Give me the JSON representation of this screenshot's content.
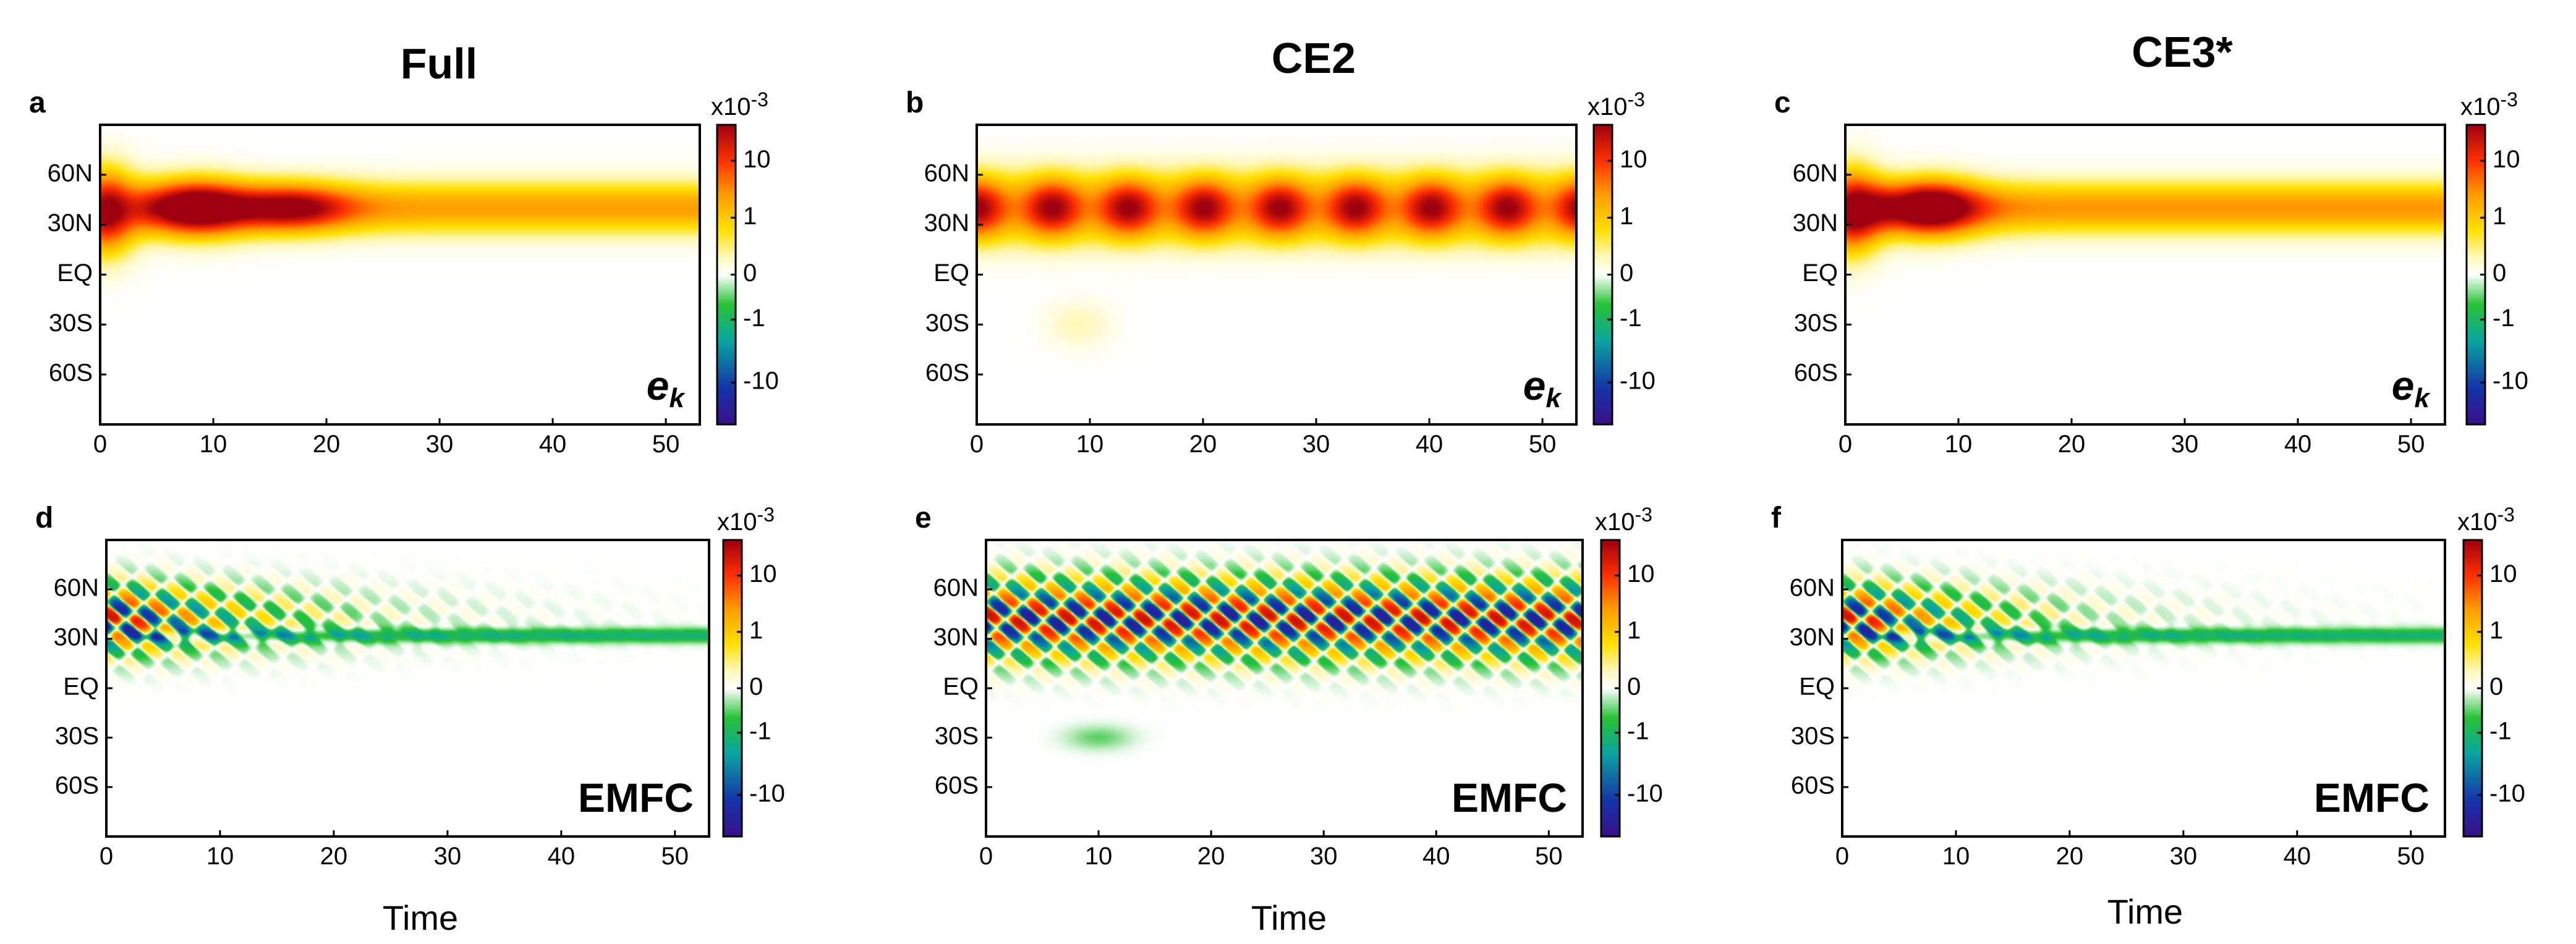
{
  "colors": {
    "colormap": [
      "#3b0f8a",
      "#1433a8",
      "#0aa6a0",
      "#27c234",
      "#ffffff",
      "#fff7b8",
      "#ffe000",
      "#ff9a00",
      "#ff3000",
      "#9e0010"
    ]
  },
  "figure": {
    "columns": [
      "Full",
      "CE2",
      "CE3*"
    ],
    "xlabel": "Time",
    "colorbar": {
      "exponent": "x10",
      "exponent_power": "-3",
      "ticks": [
        "10",
        "1",
        "0",
        "-1",
        "-10"
      ]
    }
  },
  "chart_data": [
    {
      "panel": "a",
      "type": "heatmap",
      "column": "Full",
      "variable": "e",
      "variable_sub": "k",
      "x_ticks": [
        "0",
        "10",
        "20",
        "30",
        "40",
        "50"
      ],
      "y_ticks": [
        "60N",
        "30N",
        "EQ",
        "30S",
        "60S"
      ],
      "xlim": [
        0,
        53
      ],
      "ylim": [
        -90,
        90
      ],
      "colorbar_ticks": [
        "10",
        "1",
        "0",
        "-1",
        "-10"
      ],
      "colorbar_exponent": "x10-3",
      "features": [
        {
          "kind": "blob",
          "t": 0.5,
          "lat": 38,
          "dt": 1.8,
          "dlat": 17,
          "amp": 1.0
        },
        {
          "kind": "blob",
          "t": 8.5,
          "lat": 40,
          "dt": 3.2,
          "dlat": 12,
          "amp": 0.8
        },
        {
          "kind": "blob",
          "t": 17,
          "lat": 40,
          "dt": 3.5,
          "dlat": 10,
          "amp": 0.58
        },
        {
          "kind": "band",
          "t0": 5,
          "t1": 53,
          "lat": 40,
          "dlat": 11,
          "amp": 0.52
        }
      ]
    },
    {
      "panel": "b",
      "type": "heatmap",
      "column": "CE2",
      "variable": "e",
      "variable_sub": "k",
      "x_ticks": [
        "0",
        "10",
        "20",
        "30",
        "40",
        "50"
      ],
      "y_ticks": [
        "60N",
        "30N",
        "EQ",
        "30S",
        "60S"
      ],
      "xlim": [
        0,
        53
      ],
      "ylim": [
        -90,
        90
      ],
      "colorbar_ticks": [
        "10",
        "1",
        "0",
        "-1",
        "-10"
      ],
      "colorbar_exponent": "x10-3",
      "features": [
        {
          "kind": "band",
          "t0": 0,
          "t1": 53,
          "lat": 40,
          "dlat": 14,
          "amp": 0.82
        },
        {
          "kind": "periodic",
          "t0": 0,
          "t1": 53,
          "period": 6.7,
          "lat": 40,
          "dlat": 12,
          "amp": 0.2
        },
        {
          "kind": "blob",
          "t": 9,
          "lat": -30,
          "dt": 2,
          "dlat": 10,
          "amp": 0.12
        }
      ]
    },
    {
      "panel": "c",
      "type": "heatmap",
      "column": "CE3*",
      "variable": "e",
      "variable_sub": "k",
      "x_ticks": [
        "0",
        "10",
        "20",
        "30",
        "40",
        "50"
      ],
      "y_ticks": [
        "60N",
        "30N",
        "EQ",
        "30S",
        "60S"
      ],
      "xlim": [
        0,
        53
      ],
      "ylim": [
        -90,
        90
      ],
      "colorbar_ticks": [
        "10",
        "1",
        "0",
        "-1",
        "-10"
      ],
      "colorbar_exponent": "x10-3",
      "features": [
        {
          "kind": "blob",
          "t": 0.5,
          "lat": 38,
          "dt": 1.8,
          "dlat": 17,
          "amp": 1.0
        },
        {
          "kind": "blob",
          "t": 7.5,
          "lat": 40,
          "dt": 3,
          "dlat": 12,
          "amp": 0.8
        },
        {
          "kind": "band",
          "t0": 4,
          "t1": 53,
          "lat": 40,
          "dlat": 11,
          "amp": 0.55
        }
      ]
    },
    {
      "panel": "d",
      "type": "heatmap",
      "column": "Full",
      "variable": "EMFC",
      "variable_sub": "",
      "x_ticks": [
        "0",
        "10",
        "20",
        "30",
        "40",
        "50"
      ],
      "y_ticks": [
        "60N",
        "30N",
        "EQ",
        "30S",
        "60S"
      ],
      "xlim": [
        0,
        53
      ],
      "ylim": [
        -90,
        90
      ],
      "colorbar_ticks": [
        "10",
        "1",
        "0",
        "-1",
        "-10"
      ],
      "colorbar_exponent": "x10-3",
      "features": [
        {
          "kind": "dipole",
          "t0": 0,
          "t1": 22,
          "lat": 42,
          "dlat": 14,
          "amp": 0.9,
          "decay": 11
        },
        {
          "kind": "band",
          "t0": 5,
          "t1": 53,
          "lat": 32,
          "dlat": 3,
          "amp": -0.35
        }
      ]
    },
    {
      "panel": "e",
      "type": "heatmap",
      "column": "CE2",
      "variable": "EMFC",
      "variable_sub": "",
      "x_ticks": [
        "0",
        "10",
        "20",
        "30",
        "40",
        "50"
      ],
      "y_ticks": [
        "60N",
        "30N",
        "EQ",
        "30S",
        "60S"
      ],
      "xlim": [
        0,
        53
      ],
      "ylim": [
        -90,
        90
      ],
      "colorbar_ticks": [
        "10",
        "1",
        "0",
        "-1",
        "-10"
      ],
      "colorbar_exponent": "x10-3",
      "features": [
        {
          "kind": "dipole",
          "t0": 0,
          "t1": 53,
          "lat": 42,
          "dlat": 16,
          "amp": 0.9,
          "decay": 0
        },
        {
          "kind": "blob",
          "t": 10,
          "lat": -30,
          "dt": 2,
          "dlat": 5,
          "amp": -0.15
        }
      ]
    },
    {
      "panel": "f",
      "type": "heatmap",
      "column": "CE3*",
      "variable": "EMFC",
      "variable_sub": "",
      "x_ticks": [
        "0",
        "10",
        "20",
        "30",
        "40",
        "50"
      ],
      "y_ticks": [
        "60N",
        "30N",
        "EQ",
        "30S",
        "60S"
      ],
      "xlim": [
        0,
        53
      ],
      "ylim": [
        -90,
        90
      ],
      "colorbar_ticks": [
        "10",
        "1",
        "0",
        "-1",
        "-10"
      ],
      "colorbar_exponent": "x10-3",
      "features": [
        {
          "kind": "dipole",
          "t0": 0,
          "t1": 20,
          "lat": 42,
          "dlat": 14,
          "amp": 0.9,
          "decay": 10
        },
        {
          "kind": "band",
          "t0": 5,
          "t1": 53,
          "lat": 32,
          "dlat": 3,
          "amp": -0.35
        }
      ]
    }
  ]
}
